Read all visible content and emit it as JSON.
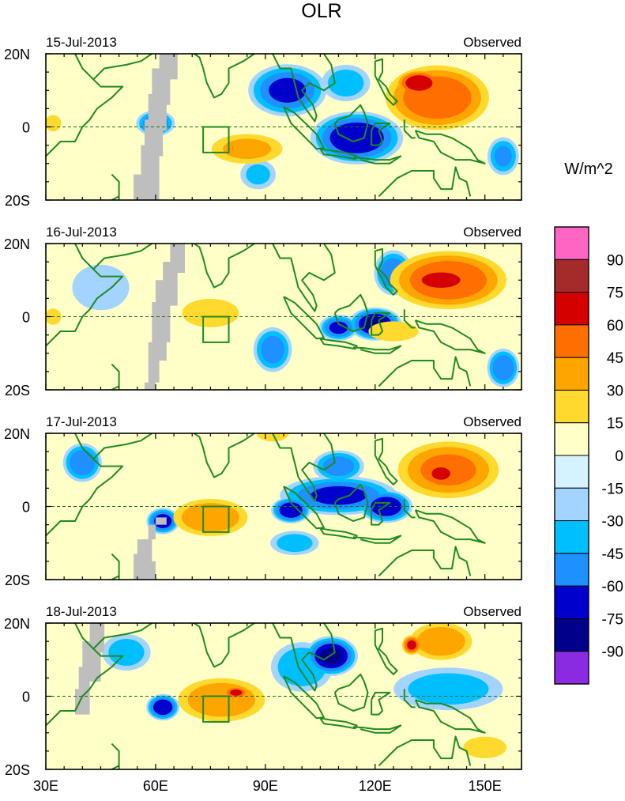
{
  "chart_data": {
    "type": "heatmap",
    "title": "OLR",
    "unit_label": "W/m^2",
    "x_ticks": [
      "30E",
      "60E",
      "90E",
      "120E",
      "150E"
    ],
    "x_tick_values": [
      30,
      60,
      90,
      120,
      150
    ],
    "xlim": [
      30,
      160
    ],
    "y_ticks": [
      "20N",
      "0",
      "20S"
    ],
    "y_tick_values": [
      20,
      0,
      -20
    ],
    "ylim": [
      -20,
      20
    ],
    "colorbar": {
      "levels": [
        "90",
        "75",
        "60",
        "45",
        "30",
        "15",
        "0",
        "-15",
        "-30",
        "-45",
        "-60",
        "-75",
        "-90"
      ],
      "colors": [
        "#ff66c4",
        "#a52a2a",
        "#d40000",
        "#ff6e00",
        "#ffa500",
        "#ffd92e",
        "#ffffc8",
        "#d4f2ff",
        "#a2d4ff",
        "#00bfff",
        "#1e90ff",
        "#0000cd",
        "#00008b",
        "#8a2be2"
      ]
    },
    "target_box": {
      "lon": [
        73,
        80
      ],
      "lat": [
        -7,
        0
      ]
    },
    "panels": [
      {
        "date": "15-Jul-2013",
        "label": "Observed",
        "anomalies": [
          {
            "lon": 137,
            "lat": 8,
            "rx": 16,
            "ry": 10,
            "value": 60
          },
          {
            "lon": 132,
            "lat": 12,
            "rx": 7,
            "ry": 4,
            "value": 75
          },
          {
            "lon": 85,
            "lat": -6,
            "rx": 12,
            "ry": 5,
            "value": 35
          },
          {
            "lon": 32,
            "lat": 1,
            "rx": 3,
            "ry": 3,
            "value": 25
          },
          {
            "lon": 96,
            "lat": 10,
            "rx": 12,
            "ry": 8,
            "value": -65
          },
          {
            "lon": 115,
            "lat": -3,
            "rx": 14,
            "ry": 8,
            "value": -75
          },
          {
            "lon": 60,
            "lat": 1,
            "rx": 6,
            "ry": 4,
            "value": -60
          },
          {
            "lon": 112,
            "lat": 12,
            "rx": 8,
            "ry": 6,
            "value": -40
          },
          {
            "lon": 155,
            "lat": -8,
            "rx": 5,
            "ry": 6,
            "value": -50
          },
          {
            "lon": 88,
            "lat": -13,
            "rx": 6,
            "ry": 5,
            "value": -35
          }
        ]
      },
      {
        "date": "16-Jul-2013",
        "label": "Observed",
        "anomalies": [
          {
            "lon": 140,
            "lat": 10,
            "rx": 18,
            "ry": 9,
            "value": 60
          },
          {
            "lon": 138,
            "lat": 10,
            "rx": 10,
            "ry": 4,
            "value": 75
          },
          {
            "lon": 75,
            "lat": 1,
            "rx": 10,
            "ry": 5,
            "value": 30
          },
          {
            "lon": 125,
            "lat": -4,
            "rx": 10,
            "ry": 4,
            "value": 20
          },
          {
            "lon": 120,
            "lat": -2,
            "rx": 8,
            "ry": 5,
            "value": -80
          },
          {
            "lon": 110,
            "lat": -3,
            "rx": 6,
            "ry": 4,
            "value": -65
          },
          {
            "lon": 125,
            "lat": 12,
            "rx": 6,
            "ry": 7,
            "value": -60
          },
          {
            "lon": 92,
            "lat": -9,
            "rx": 6,
            "ry": 7,
            "value": -55
          },
          {
            "lon": 155,
            "lat": -14,
            "rx": 5,
            "ry": 6,
            "value": -60
          },
          {
            "lon": 45,
            "lat": 8,
            "rx": 10,
            "ry": 8,
            "value": -30
          },
          {
            "lon": 32,
            "lat": 0,
            "rx": 3,
            "ry": 3,
            "value": 25
          }
        ]
      },
      {
        "date": "17-Jul-2013",
        "label": "Observed",
        "anomalies": [
          {
            "lon": 140,
            "lat": 10,
            "rx": 16,
            "ry": 9,
            "value": 50
          },
          {
            "lon": 138,
            "lat": 9,
            "rx": 6,
            "ry": 4,
            "value": 65
          },
          {
            "lon": 75,
            "lat": -3,
            "rx": 12,
            "ry": 6,
            "value": 45
          },
          {
            "lon": 110,
            "lat": 3,
            "rx": 18,
            "ry": 6,
            "value": -65
          },
          {
            "lon": 97,
            "lat": -1,
            "rx": 6,
            "ry": 4,
            "value": -75
          },
          {
            "lon": 123,
            "lat": 0,
            "rx": 8,
            "ry": 5,
            "value": -75
          },
          {
            "lon": 62,
            "lat": -4,
            "rx": 5,
            "ry": 4,
            "value": -70
          },
          {
            "lon": 40,
            "lat": 12,
            "rx": 6,
            "ry": 6,
            "value": -60
          },
          {
            "lon": 110,
            "lat": 11,
            "rx": 8,
            "ry": 5,
            "value": -55
          },
          {
            "lon": 98,
            "lat": -10,
            "rx": 8,
            "ry": 4,
            "value": -40
          },
          {
            "lon": 92,
            "lat": 20,
            "rx": 6,
            "ry": 3,
            "value": 25
          }
        ]
      },
      {
        "date": "18-Jul-2013",
        "label": "Observed",
        "anomalies": [
          {
            "lon": 138,
            "lat": 15,
            "rx": 10,
            "ry": 6,
            "value": 45
          },
          {
            "lon": 130,
            "lat": 14,
            "rx": 3,
            "ry": 3,
            "value": 65
          },
          {
            "lon": 78,
            "lat": -1,
            "rx": 14,
            "ry": 7,
            "value": 45
          },
          {
            "lon": 82,
            "lat": 1,
            "rx": 4,
            "ry": 2,
            "value": 65
          },
          {
            "lon": 108,
            "lat": 11,
            "rx": 8,
            "ry": 6,
            "value": -80
          },
          {
            "lon": 140,
            "lat": 2,
            "rx": 18,
            "ry": 7,
            "value": -40
          },
          {
            "lon": 62,
            "lat": -3,
            "rx": 5,
            "ry": 4,
            "value": -75
          },
          {
            "lon": 100,
            "lat": 8,
            "rx": 10,
            "ry": 8,
            "value": -45
          },
          {
            "lon": 52,
            "lat": 12,
            "rx": 8,
            "ry": 6,
            "value": -40
          },
          {
            "lon": 150,
            "lat": -14,
            "rx": 8,
            "ry": 4,
            "value": 25
          },
          {
            "lon": 35,
            "lat": 13,
            "rx": 6,
            "ry": 5,
            "value": 15
          }
        ]
      }
    ]
  }
}
